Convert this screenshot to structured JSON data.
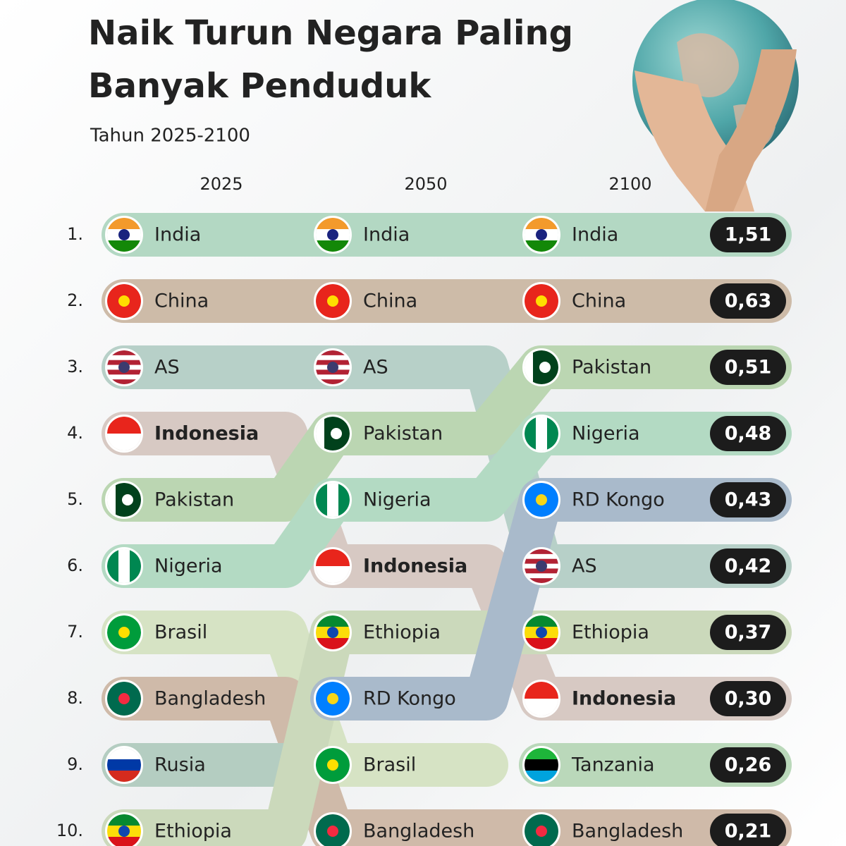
{
  "title": [
    "Naik Turun Negara Paling",
    "Banyak Penduduk"
  ],
  "subtitle": "Tahun 2025-2100",
  "highlight": "Indonesia",
  "ranks": [
    "1.",
    "2.",
    "3.",
    "4.",
    "5.",
    "6.",
    "7.",
    "8.",
    "9.",
    "10."
  ],
  "countries": [
    {
      "name": "India",
      "color": "#b3d8c3",
      "flag": {
        "dir": "h",
        "colors": [
          "#f39a2b",
          "#ffffff",
          "#138808"
        ],
        "dot": "#1a237e"
      }
    },
    {
      "name": "China",
      "color": "#cdbba8",
      "flag": {
        "dir": "h",
        "colors": [
          "#e8251c"
        ],
        "dot": "#ffde00"
      }
    },
    {
      "name": "AS",
      "color": "#b7d0c8",
      "flag": {
        "dir": "h",
        "colors": [
          "#b22234",
          "#ffffff",
          "#b22234",
          "#ffffff",
          "#b22234",
          "#ffffff",
          "#b22234"
        ],
        "dot": "#3c3b6e"
      }
    },
    {
      "name": "Indonesia",
      "color": "#d7c9c3",
      "flag": {
        "dir": "h",
        "colors": [
          "#e8251c",
          "#ffffff"
        ]
      }
    },
    {
      "name": "Pakistan",
      "color": "#bbd6b2",
      "flag": {
        "dir": "v",
        "colors": [
          "#ffffff",
          "#01411c",
          "#01411c",
          "#01411c"
        ],
        "dot": "#ffffff"
      }
    },
    {
      "name": "Nigeria",
      "color": "#b3dac3",
      "flag": {
        "dir": "v",
        "colors": [
          "#008751",
          "#ffffff",
          "#008751"
        ]
      }
    },
    {
      "name": "Brasil",
      "color": "#d6e3c4",
      "flag": {
        "dir": "h",
        "colors": [
          "#009c3b"
        ],
        "dot": "#ffdf00"
      }
    },
    {
      "name": "Bangladesh",
      "color": "#cfbaa9",
      "flag": {
        "dir": "h",
        "colors": [
          "#006a4e"
        ],
        "dot": "#f42a41"
      }
    },
    {
      "name": "Rusia",
      "color": "#b4cdc1",
      "flag": {
        "dir": "h",
        "colors": [
          "#ffffff",
          "#0039a6",
          "#d52b1e"
        ]
      }
    },
    {
      "name": "Ethiopia",
      "color": "#cbd9bb",
      "flag": {
        "dir": "h",
        "colors": [
          "#078930",
          "#fcdd09",
          "#da121a"
        ],
        "dot": "#0f47af"
      }
    },
    {
      "name": "RD Kongo",
      "color": "#a9bacb",
      "flag": {
        "dir": "h",
        "colors": [
          "#007fff"
        ],
        "dot": "#f7d618"
      }
    },
    {
      "name": "Tanzania",
      "color": "#bad8ba",
      "flag": {
        "dir": "h",
        "colors": [
          "#1eb53a",
          "#000000",
          "#00a3dd"
        ]
      }
    }
  ],
  "columns": [
    {
      "year": "2025",
      "countries": [
        "India",
        "China",
        "AS",
        "Indonesia",
        "Pakistan",
        "Nigeria",
        "Brasil",
        "Bangladesh",
        "Rusia",
        "Ethiopia"
      ]
    },
    {
      "year": "2050",
      "countries": [
        "India",
        "China",
        "AS",
        "Pakistan",
        "Nigeria",
        "Indonesia",
        "Ethiopia",
        "RD Kongo",
        "Brasil",
        "Bangladesh"
      ]
    },
    {
      "year": "2100",
      "countries": [
        "India",
        "China",
        "Pakistan",
        "Nigeria",
        "RD Kongo",
        "AS",
        "Ethiopia",
        "Indonesia",
        "Tanzania",
        "Bangladesh"
      ]
    }
  ],
  "values": [
    "1,51",
    "0,63",
    "0,51",
    "0,48",
    "0,43",
    "0,42",
    "0,37",
    "0,30",
    "0,26",
    "0,21"
  ]
}
